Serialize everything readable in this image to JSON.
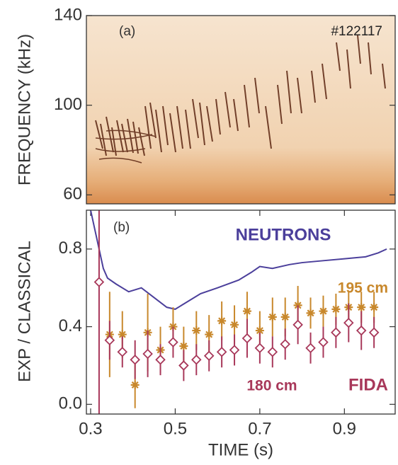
{
  "chart_data": [
    {
      "type": "spectrogram",
      "ylabel": "FREQUENCY (kHz)",
      "ylim": [
        56,
        140
      ],
      "yticks": [
        60,
        100,
        140
      ],
      "annotations": [
        "(a)",
        "#122117"
      ]
    },
    {
      "type": "line",
      "xlabel": "TIME (s)",
      "ylabel": "EXP / CLASSICAL",
      "xlim": [
        0.29,
        1.02
      ],
      "xticks": [
        0.3,
        0.5,
        0.7,
        0.9
      ],
      "ylim": [
        -0.05,
        1.0
      ],
      "yticks": [
        {
          "value": 0,
          "label": "0.0"
        },
        0.4,
        0.8
      ],
      "annotations": [
        "(b)",
        "FIDA"
      ],
      "series": [
        {
          "name": "NEUTRONS",
          "color": "#4b3f9b",
          "marker": "none",
          "x": [
            0.3,
            0.31,
            0.32,
            0.33,
            0.34,
            0.36,
            0.39,
            0.42,
            0.45,
            0.48,
            0.5,
            0.53,
            0.56,
            0.6,
            0.65,
            0.68,
            0.7,
            0.73,
            0.77,
            0.8,
            0.85,
            0.9,
            0.95,
            0.98,
            1.0
          ],
          "values": [
            1.0,
            0.9,
            0.8,
            0.7,
            0.65,
            0.62,
            0.58,
            0.6,
            0.55,
            0.5,
            0.49,
            0.53,
            0.57,
            0.6,
            0.64,
            0.68,
            0.71,
            0.7,
            0.72,
            0.73,
            0.74,
            0.75,
            0.76,
            0.78,
            0.8
          ]
        },
        {
          "name": "195 cm",
          "color": "#c8882c",
          "marker": "asterisk",
          "x": [
            0.345,
            0.375,
            0.405,
            0.435,
            0.465,
            0.495,
            0.52,
            0.55,
            0.58,
            0.61,
            0.64,
            0.67,
            0.7,
            0.73,
            0.76,
            0.79,
            0.82,
            0.85,
            0.88,
            0.91,
            0.94,
            0.97
          ],
          "values": [
            0.36,
            0.36,
            0.1,
            0.37,
            0.28,
            0.4,
            0.3,
            0.38,
            0.36,
            0.43,
            0.41,
            0.48,
            0.38,
            0.45,
            0.45,
            0.51,
            0.47,
            0.48,
            0.49,
            0.5,
            0.5,
            0.5
          ],
          "errors": [
            0.22,
            0.12,
            0.12,
            0.2,
            0.12,
            0.1,
            0.1,
            0.1,
            0.1,
            0.1,
            0.1,
            0.1,
            0.1,
            0.1,
            0.1,
            0.1,
            0.08,
            0.08,
            0.08,
            0.08,
            0.08,
            0.08
          ]
        },
        {
          "name": "180 cm",
          "color": "#a8385a",
          "marker": "diamond",
          "x": [
            0.32,
            0.345,
            0.375,
            0.405,
            0.435,
            0.465,
            0.495,
            0.52,
            0.55,
            0.58,
            0.61,
            0.64,
            0.67,
            0.7,
            0.73,
            0.76,
            0.79,
            0.82,
            0.85,
            0.88,
            0.91,
            0.94,
            0.97
          ],
          "values": [
            0.63,
            0.33,
            0.27,
            0.23,
            0.26,
            0.23,
            0.32,
            0.2,
            0.23,
            0.25,
            0.27,
            0.28,
            0.34,
            0.29,
            0.27,
            0.31,
            0.41,
            0.29,
            0.32,
            0.37,
            0.42,
            0.38,
            0.37
          ],
          "errors": [
            0.68,
            0.1,
            0.08,
            0.1,
            0.12,
            0.08,
            0.08,
            0.08,
            0.08,
            0.08,
            0.08,
            0.08,
            0.1,
            0.08,
            0.08,
            0.08,
            0.1,
            0.08,
            0.08,
            0.08,
            0.1,
            0.1,
            0.08
          ]
        }
      ]
    }
  ]
}
